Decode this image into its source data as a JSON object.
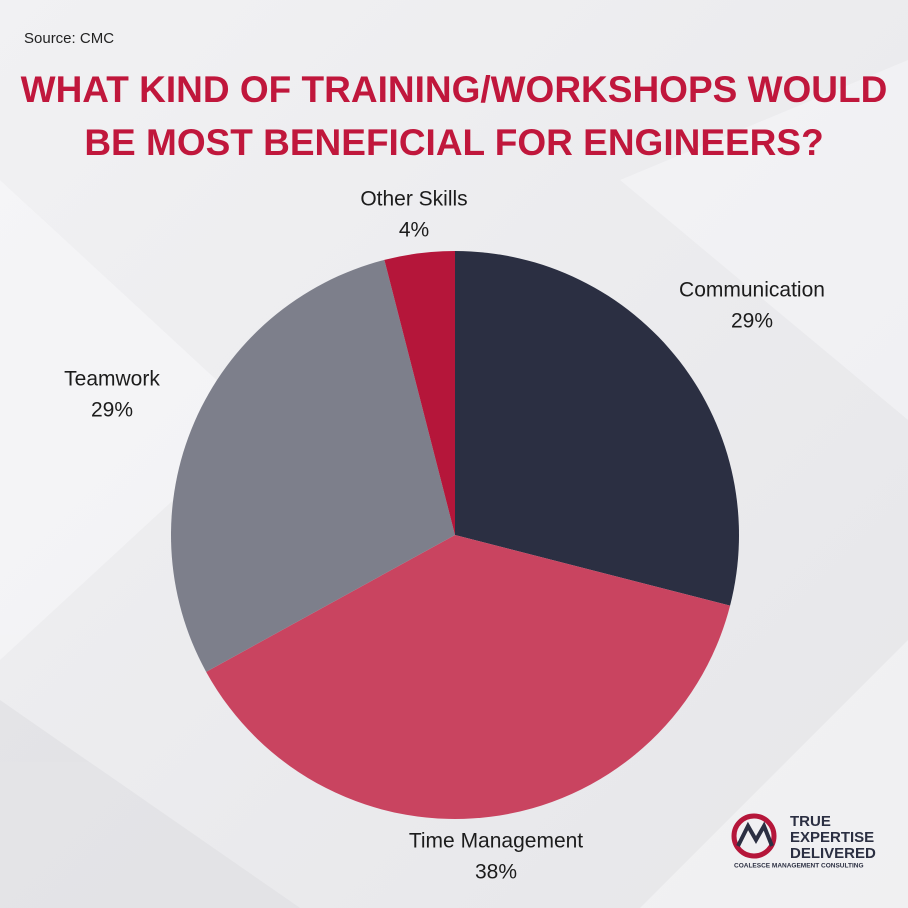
{
  "source": "Source: CMC",
  "logo": {
    "tagline": [
      "TRUE",
      "EXPERTISE",
      "DELIVERED"
    ],
    "company": "COALESCE MANAGEMENT CONSULTING"
  },
  "chart_data": {
    "type": "pie",
    "title": [
      "WHAT KIND OF TRAINING/WORKSHOPS WOULD",
      "BE MOST BENEFICIAL FOR ENGINEERS?"
    ],
    "categories": [
      "Communication",
      "Time Management",
      "Teamwork",
      "Other Skills"
    ],
    "values": [
      29,
      38,
      29,
      4
    ],
    "value_labels": [
      "29%",
      "38%",
      "29%",
      "4%"
    ],
    "colors": [
      "#2b2f42",
      "#c94460",
      "#7d7f8b",
      "#b5163a"
    ]
  }
}
